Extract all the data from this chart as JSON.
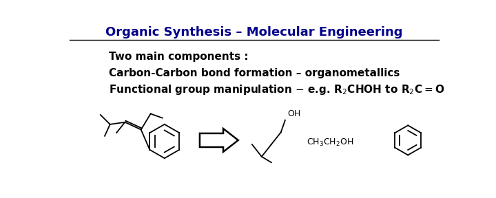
{
  "title": "Organic Synthesis – Molecular Engineering",
  "title_color": "#00008B",
  "title_fontsize": 13,
  "bg_color": "#FFFFFF",
  "line1": "Two main components :",
  "line2": "Carbon-Carbon bond formation – organometallics",
  "text_color": "#000000",
  "body_fontsize": 11,
  "hline_color": "#000000",
  "mol_lw": 1.3
}
